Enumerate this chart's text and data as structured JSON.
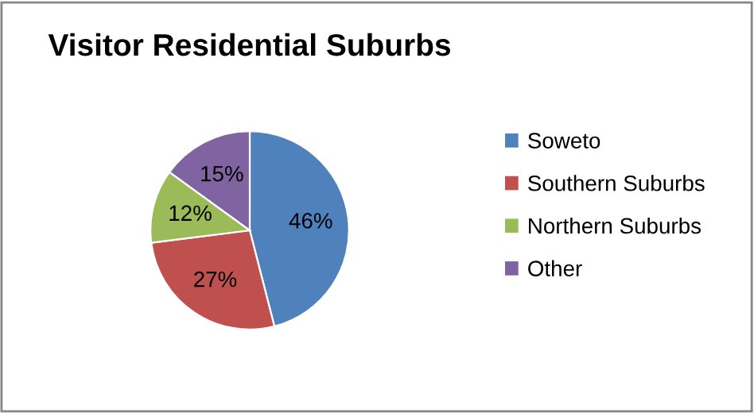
{
  "chart_data": {
    "type": "pie",
    "title": "Visitor Residential Suburbs",
    "categories": [
      "Soweto",
      "Southern Suburbs",
      "Northern Suburbs",
      "Other"
    ],
    "values": [
      46,
      27,
      12,
      15
    ],
    "colors": [
      "#4f81bd",
      "#c0504d",
      "#9bbb59",
      "#8064a2"
    ],
    "value_labels": [
      "46%",
      "27%",
      "12%",
      "15%"
    ],
    "legend": "right"
  }
}
